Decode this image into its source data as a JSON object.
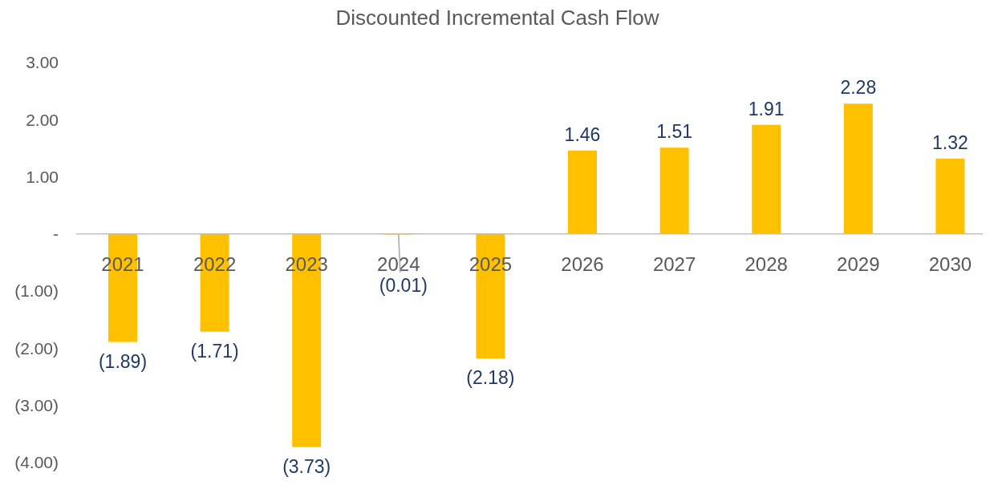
{
  "chart_data": {
    "type": "bar",
    "title": "Discounted Incremental Cash Flow",
    "categories": [
      "2021",
      "2022",
      "2023",
      "2024",
      "2025",
      "2026",
      "2027",
      "2028",
      "2029",
      "2030"
    ],
    "values": [
      -1.89,
      -1.71,
      -3.73,
      -0.01,
      -2.18,
      1.46,
      1.51,
      1.91,
      2.28,
      1.32
    ],
    "value_labels": [
      "(1.89)",
      "(1.71)",
      "(3.73)",
      "(0.01)",
      "(2.18)",
      "1.46",
      "1.51",
      "1.91",
      "2.28",
      "1.32"
    ],
    "color": "#ffc000",
    "ylim": [
      -4,
      3
    ],
    "yticks": [
      {
        "value": -4,
        "label": "(4.00)"
      },
      {
        "value": -3,
        "label": "(3.00)"
      },
      {
        "value": -2,
        "label": "(2.00)"
      },
      {
        "value": -1,
        "label": "(1.00)"
      },
      {
        "value": 0,
        "label": "-"
      },
      {
        "value": 1,
        "label": "1.00"
      },
      {
        "value": 2,
        "label": "2.00"
      },
      {
        "value": 3,
        "label": "3.00"
      }
    ],
    "grid": false
  }
}
